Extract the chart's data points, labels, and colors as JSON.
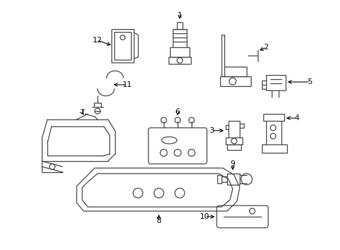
{
  "background_color": "#ffffff",
  "line_color": "#444444",
  "lw": 0.9,
  "figsize": [
    4.89,
    3.6
  ],
  "dpi": 100
}
